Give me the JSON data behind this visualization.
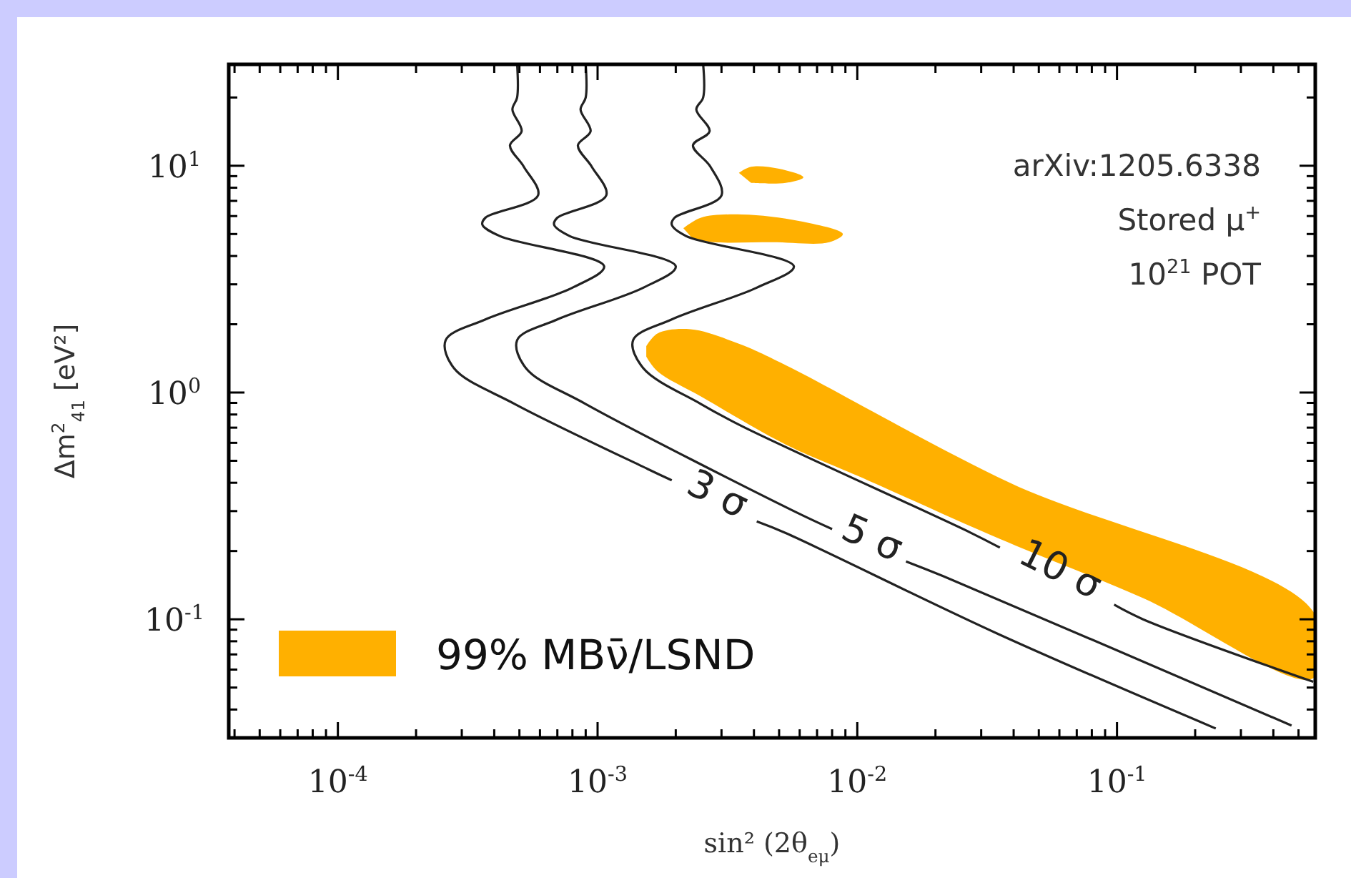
{
  "chart_data": {
    "type": "line",
    "xlabel": "sin² (2θ$_{eμ}$)",
    "ylabel": "Δm$^{2}$$_{41}$ [eV²]",
    "log": "xy",
    "legend": "bottom left",
    "line_style": "solid",
    "marker": "none",
    "xlim": [
      3.8e-05,
      0.58
    ],
    "ylim": [
      0.03,
      28
    ],
    "xticks": [
      {
        "value": 0.0001,
        "label": "10$^{-4}$"
      },
      {
        "value": 0.001,
        "label": "10$^{-3}$"
      },
      {
        "value": 0.01,
        "label": "10$^{-2}$"
      },
      {
        "value": 0.1,
        "label": "10$^{-1}$"
      },
      {
        "value": 4e-05,
        "label": null
      },
      {
        "value": 5e-05,
        "label": null
      },
      {
        "value": 6e-05,
        "label": null
      },
      {
        "value": 7e-05,
        "label": null
      },
      {
        "value": 8e-05,
        "label": null
      },
      {
        "value": 9e-05,
        "label": null
      },
      {
        "value": 0.0002,
        "label": null
      },
      {
        "value": 0.0003,
        "label": null
      },
      {
        "value": 0.0004,
        "label": null
      },
      {
        "value": 0.0005,
        "label": null
      },
      {
        "value": 0.0006,
        "label": null
      },
      {
        "value": 0.0007,
        "label": null
      },
      {
        "value": 0.0008,
        "label": null
      },
      {
        "value": 0.0009,
        "label": null
      },
      {
        "value": 0.002,
        "label": null
      },
      {
        "value": 0.003,
        "label": null
      },
      {
        "value": 0.004,
        "label": null
      },
      {
        "value": 0.005,
        "label": null
      },
      {
        "value": 0.006,
        "label": null
      },
      {
        "value": 0.007,
        "label": null
      },
      {
        "value": 0.008,
        "label": null
      },
      {
        "value": 0.009,
        "label": null
      },
      {
        "value": 0.02,
        "label": null
      },
      {
        "value": 0.03,
        "label": null
      },
      {
        "value": 0.04,
        "label": null
      },
      {
        "value": 0.05,
        "label": null
      },
      {
        "value": 0.06,
        "label": null
      },
      {
        "value": 0.07,
        "label": null
      },
      {
        "value": 0.08,
        "label": null
      },
      {
        "value": 0.09,
        "label": null
      },
      {
        "value": 0.2,
        "label": null
      },
      {
        "value": 0.3,
        "label": null
      },
      {
        "value": 0.4,
        "label": null
      },
      {
        "value": 0.5,
        "label": null
      }
    ],
    "yticks": [
      {
        "value": 0.1,
        "label": "10$^{-1}$"
      },
      {
        "value": 1,
        "label": "10$^{0}$"
      },
      {
        "value": 10,
        "label": "10$^{1}$"
      },
      {
        "value": 0.04,
        "label": null
      },
      {
        "value": 0.05,
        "label": null
      },
      {
        "value": 0.06,
        "label": null
      },
      {
        "value": 0.07,
        "label": null
      },
      {
        "value": 0.08,
        "label": null
      },
      {
        "value": 0.09,
        "label": null
      },
      {
        "value": 0.2,
        "label": null
      },
      {
        "value": 0.3,
        "label": null
      },
      {
        "value": 0.4,
        "label": null
      },
      {
        "value": 0.5,
        "label": null
      },
      {
        "value": 0.6,
        "label": null
      },
      {
        "value": 0.7,
        "label": null
      },
      {
        "value": 0.8,
        "label": null
      },
      {
        "value": 0.9,
        "label": null
      },
      {
        "value": 2,
        "label": null
      },
      {
        "value": 3,
        "label": null
      },
      {
        "value": 4,
        "label": null
      },
      {
        "value": 5,
        "label": null
      },
      {
        "value": 6,
        "label": null
      },
      {
        "value": 7,
        "label": null
      },
      {
        "value": 8,
        "label": null
      },
      {
        "value": 9,
        "label": null
      },
      {
        "value": 20,
        "label": null
      }
    ],
    "annotations": [
      "arXiv:1205.6338",
      "Stored μ$^{+}$",
      "10$^{21}$ POT"
    ],
    "series": [
      {
        "type": "area",
        "name": "99% MBν̄/LSND",
        "color": "#ffb000",
        "x": [
          0.00154,
          0.0017,
          0.00228,
          0.0035,
          0.0053,
          0.0387,
          0.57,
          0.57,
          0.126,
          0.0354,
          0.01,
          0.0053,
          0.0025,
          0.0017,
          0.00154
        ],
        "values": [
          1.6,
          1.82,
          1.9,
          1.64,
          1.32,
          0.4,
          0.108,
          0.055,
          0.124,
          0.226,
          0.43,
          0.59,
          0.96,
          1.24,
          1.44
        ]
      },
      {
        "type": "area",
        "color": "#ffb000",
        "x": [
          0.00214,
          0.0025,
          0.0036,
          0.006,
          0.0088,
          0.0078,
          0.0047,
          0.0028,
          0.00233
        ],
        "values": [
          5.3,
          5.9,
          6.1,
          5.7,
          5.0,
          4.6,
          4.6,
          4.6,
          4.75
        ]
      },
      {
        "type": "area",
        "color": "#ffb000",
        "x": [
          0.0035,
          0.0039,
          0.005,
          0.0062,
          0.0053,
          0.0039
        ],
        "values": [
          9.3,
          9.9,
          9.7,
          8.9,
          8.4,
          8.4
        ]
      },
      {
        "name": "3 σ",
        "color": "#222222",
        "x": [
          0.00049,
          0.00049,
          0.00047,
          0.00051,
          0.00046,
          0.00052,
          0.00059,
          0.00037,
          0.00036,
          0.00042,
          0.00106,
          0.0008,
          0.00037,
          0.00026,
          0.00028,
          0.00048,
          0.00156,
          0.00193,
          0.003,
          0.0041,
          0.0053,
          0.035,
          0.24
        ],
        "values": [
          28,
          20,
          17.7,
          14.2,
          12.3,
          9.9,
          7.4,
          5.9,
          5.5,
          4.9,
          3.6,
          2.9,
          2.1,
          1.7,
          1.28,
          0.89,
          0.46,
          0.41,
          null,
          0.27,
          0.24,
          0.086,
          0.033
        ]
      },
      {
        "name": "5 σ",
        "color": "#222222",
        "x": [
          0.0009,
          0.0009,
          0.00086,
          0.00094,
          0.00084,
          0.00095,
          0.00108,
          0.0007,
          0.00068,
          0.00078,
          0.002,
          0.0015,
          0.0007,
          0.00049,
          0.00053,
          0.0009,
          0.0057,
          0.008,
          0.0114,
          0.0154,
          0.0214,
          0.47
        ],
        "values": [
          28,
          20,
          17.7,
          14.2,
          12.3,
          9.9,
          7.4,
          5.9,
          5.5,
          4.9,
          3.6,
          2.9,
          2.1,
          1.7,
          1.28,
          0.89,
          0.3,
          0.25,
          null,
          0.18,
          0.155,
          0.034
        ]
      },
      {
        "name": "10 σ",
        "color": "#222222",
        "x": [
          0.00255,
          0.00255,
          0.0024,
          0.0027,
          0.00233,
          0.00272,
          0.003,
          0.00198,
          0.00193,
          0.00219,
          0.0057,
          0.0041,
          0.00193,
          0.00137,
          0.0015,
          0.0025,
          0.0036,
          0.0275,
          0.0354,
          0.0588,
          0.0975,
          0.126,
          0.57
        ],
        "values": [
          28,
          20,
          17.7,
          14.2,
          12.3,
          9.9,
          7.4,
          5.9,
          5.5,
          4.9,
          3.6,
          2.9,
          2.1,
          1.7,
          1.28,
          0.89,
          0.71,
          0.24,
          0.207,
          null,
          0.116,
          0.1,
          0.053
        ]
      }
    ]
  }
}
